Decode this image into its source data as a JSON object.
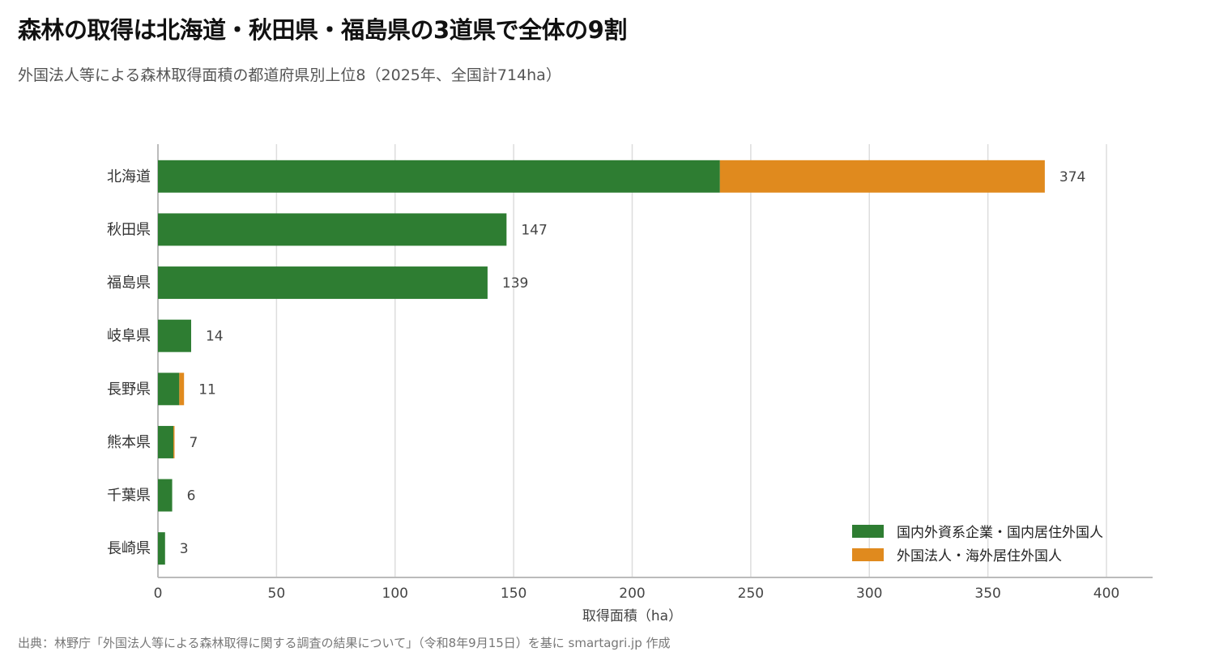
{
  "title": "森林の取得は北海道・秋田県・福島県の3道県で全体の9割",
  "subtitle": "外国法人等による森林取得面積の都道府県別上位8（2025年、全国計714ha）",
  "source": "出典：林野庁「外国法人等による森林取得に関する調査の結果について」（令和8年9月15日）を基に smartagri.jp 作成",
  "colors": {
    "domestic": "#2e7d32",
    "overseas": "#e08a1e",
    "grid": "#dddddd",
    "axis": "#bbbbbb"
  },
  "chart_data": {
    "type": "bar",
    "orientation": "horizontal",
    "stacked": true,
    "categories": [
      "北海道",
      "秋田県",
      "福島県",
      "岐阜県",
      "長野県",
      "熊本県",
      "千葉県",
      "長崎県"
    ],
    "series": [
      {
        "name": "国内外資系企業・国内居住外国人",
        "values": [
          237,
          147,
          139,
          14,
          9,
          6.5,
          6,
          3
        ]
      },
      {
        "name": "外国法人・海外居住外国人",
        "values": [
          137,
          0,
          0,
          0,
          2,
          0.5,
          0,
          0
        ]
      }
    ],
    "totals": [
      "374",
      "147",
      "139",
      "14",
      "11",
      "7",
      "6",
      "3"
    ],
    "xlabel": "取得面積（ha）",
    "ylabel": "",
    "xlim": [
      0,
      420
    ],
    "xticks": [
      0,
      50,
      100,
      150,
      200,
      250,
      300,
      350,
      400
    ],
    "grid": true,
    "legend_position": "bottom-right"
  }
}
